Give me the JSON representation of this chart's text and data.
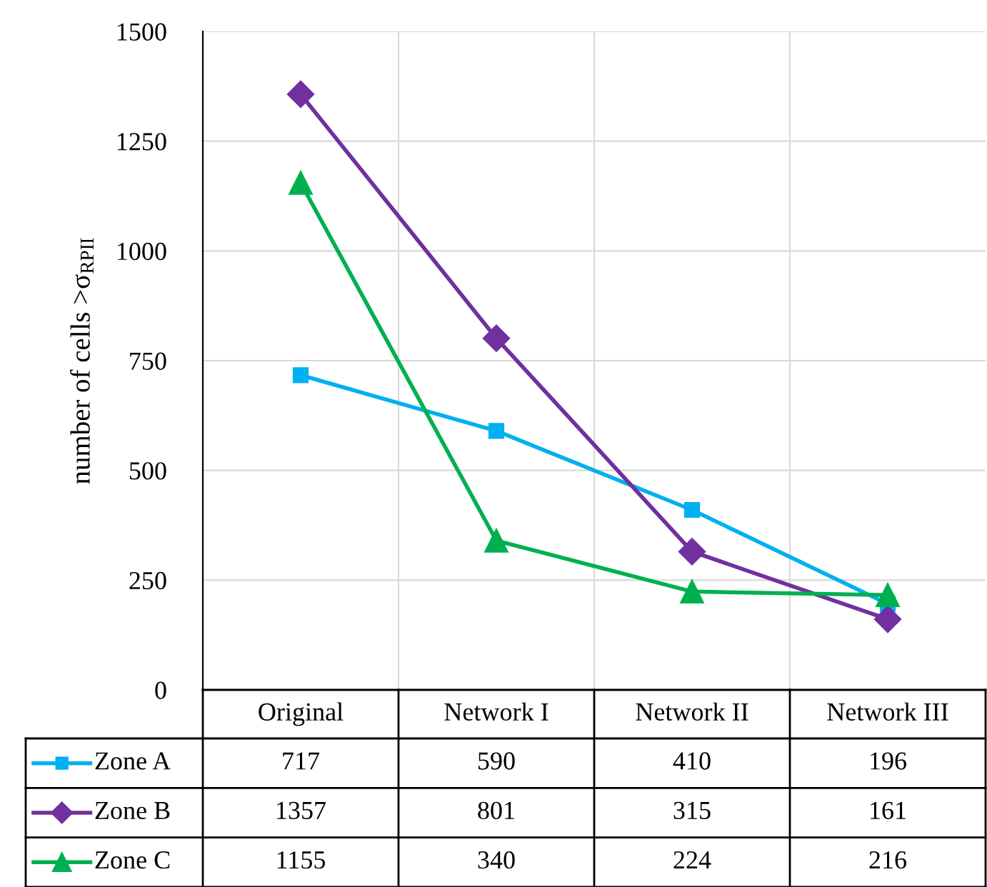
{
  "chart_data": {
    "type": "line",
    "ylabel": "number of cells >σ$_{RPII}$",
    "categories": [
      "Original",
      "Network I",
      "Network II",
      "Network III"
    ],
    "series": [
      {
        "name": "Zone A",
        "color": "#00b0f0",
        "marker": "square",
        "values": [
          717,
          590,
          410,
          196
        ]
      },
      {
        "name": "Zone B",
        "color": "#7030a0",
        "marker": "diamond",
        "values": [
          1357,
          801,
          315,
          161
        ]
      },
      {
        "name": "Zone C",
        "color": "#00b050",
        "marker": "triangle",
        "values": [
          1155,
          340,
          224,
          216
        ]
      }
    ],
    "ylim": [
      0,
      1500
    ],
    "yticks": [
      0,
      250,
      500,
      750,
      1000,
      1250,
      1500
    ],
    "grid": true,
    "legend": "bottom left",
    "data_labels": true,
    "line_style": "solid"
  }
}
